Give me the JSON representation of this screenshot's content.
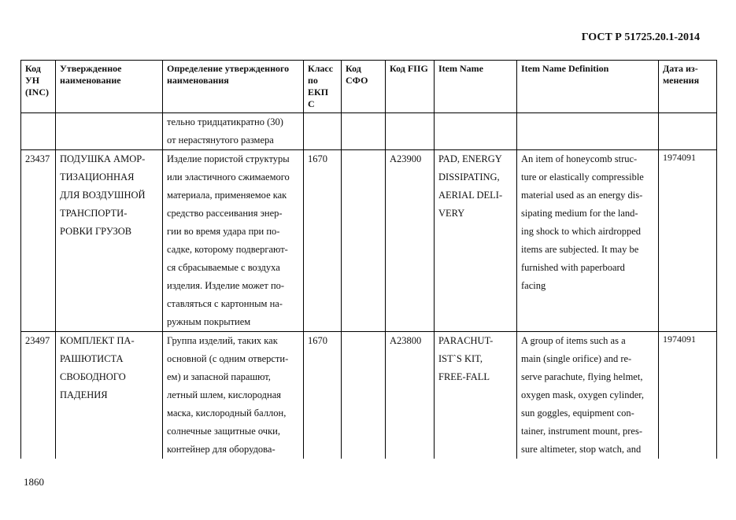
{
  "header": {
    "title": "ГОСТ Р 51725.20.1-2014"
  },
  "footer": {
    "page_number": "1860"
  },
  "table": {
    "columns": [
      "Код УН (INC)",
      "Утвержденное наименование",
      "Определение утвержденного наименования",
      "Класс по ЕКП С",
      "Код СФО",
      "Код FIIG",
      "Item Name",
      "Item Name Definition",
      "Дата из-менения"
    ],
    "rows": [
      {
        "inc": "",
        "name": [],
        "definition": [
          "тельно тридцатикратно (30)",
          "от нерастянутого размера"
        ],
        "class": "",
        "sfo": "",
        "fiig": "",
        "item_name": [],
        "item_definition": [],
        "date": ""
      },
      {
        "inc": "23437",
        "name": [
          "ПОДУШКА АМОР-",
          "ТИЗАЦИОННАЯ",
          "ДЛЯ ВОЗДУШНОЙ",
          "ТРАНСПОРТИ-",
          "РОВКИ ГРУЗОВ"
        ],
        "definition": [
          "Изделие пористой структуры",
          "или эластичного сжимаемого",
          "материала, применяемое как",
          "средство рассеивания энер-",
          "гии во время удара при по-",
          "садке, которому подвергают-",
          "ся сбрасываемые с воздуха",
          "изделия. Изделие может по-",
          "ставляться с картонным на-",
          "ружным покрытием"
        ],
        "class": "1670",
        "sfo": "",
        "fiig": "A23900",
        "item_name": [
          "PAD, ENERGY",
          "DISSIPATING,",
          "AERIAL DELI-",
          "VERY"
        ],
        "item_definition": [
          "An item of honeycomb struc-",
          "ture or elastically compressible",
          "material used as an energy dis-",
          "sipating medium for the land-",
          "ing shock to which airdropped",
          "items are subjected. It may be",
          "furnished with paperboard",
          "facing"
        ],
        "date": "1974091"
      },
      {
        "inc": "23497",
        "name": [
          "КОМПЛЕКТ ПА-",
          "РАШЮТИСТА",
          "СВОБОДНОГО",
          "ПАДЕНИЯ"
        ],
        "definition": [
          "Группа изделий, таких как",
          "основной (с одним отверсти-",
          "ем) и запасной парашют,",
          "летный шлем, кислородная",
          "маска, кислородный баллон,",
          "солнечные защитные очки,",
          "контейнер для оборудова-"
        ],
        "class": "1670",
        "sfo": "",
        "fiig": "A23800",
        "item_name": [
          "PARACHUT-",
          "IST`S KIT,",
          "FREE-FALL"
        ],
        "item_definition": [
          "A group of items such as a",
          "main (single orifice) and re-",
          "serve parachute, flying helmet,",
          "oxygen mask, oxygen cylinder,",
          "sun goggles, equipment con-",
          "tainer, instrument mount, pres-",
          "sure altimeter, stop watch, and"
        ],
        "date": "1974091"
      }
    ]
  }
}
